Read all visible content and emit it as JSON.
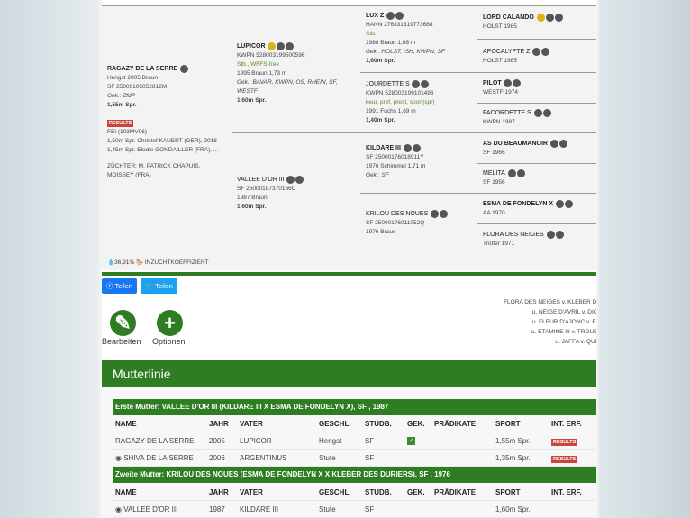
{
  "pedigree": {
    "horse": {
      "name": "RAGAZY DE LA SERRE",
      "l1": "Hengst 2005 Braun",
      "l2": "SF 25000105052812M",
      "gek": "Gek.: ZfdP",
      "sport": "1,55m Spr.",
      "results": "RESULTS",
      "fei": "FEI (103MV06)",
      "r1": "1,50m Spr. Christof KAUERT (GER), 2018",
      "r2": "1,45m Spr. Elodie GONDAILLER (FRA), ...",
      "breeder1": "ZÜCHTER: M. PATRICK CHAPUIS,",
      "breeder2": "MOISSEY (FRA)",
      "inbreeding_value": "36,91%",
      "inbreeding_label": "INZUCHTKOEFFIZIENT"
    },
    "sire": {
      "name": "LUPICOR",
      "l1": "KWPN 528003199500596",
      "l2": "Stb., WFFS-free",
      "l3": "1995 Braun 1,73 m",
      "gek": "Gek.: BAVAR, KWPN, OS, RHEIN, SF, WESTF",
      "sport": "1,60m Spr."
    },
    "dam": {
      "name": "VALLEE D'OR III",
      "l1": "SF 25000187370166C",
      "l2": "1987 Braun",
      "sport": "1,60m Spr."
    },
    "ss": {
      "name": "LUX Z",
      "l1": "HANN 276331319773688",
      "l2": "Stb.",
      "l3": "1988 Braun 1,68 m",
      "gek": "Gek.: HOLST, ISH, KWPN, SF",
      "sport": "1,60m Spr."
    },
    "sd": {
      "name": "JOURDETTE S",
      "l1": "KWPN 528003199101496",
      "l2": "keur, pref, prest, sport(spr)",
      "l3": "1991 Fuchs 1,69 m",
      "sport": "1,40m Spr."
    },
    "ds": {
      "name": "KILDARE III",
      "l1": "SF 25000176018911Y",
      "l2": "1976 Schimmel 1,71 m",
      "gek": "Gek.: SF"
    },
    "dd": {
      "name": "KRILOU DES NOUES",
      "l1": "SF 25000176011052Q",
      "l2": "1976 Braun"
    },
    "gen4": [
      {
        "name": "LORD CALANDO",
        "info": "HOLST 1985"
      },
      {
        "name": "APOCALYPTE Z",
        "info": "HOLST 1985"
      },
      {
        "name": "PILOT",
        "info": "WESTF 1974"
      },
      {
        "name": "FACORDETTE S",
        "info": "KWPN 1987"
      },
      {
        "name": "AS DU BEAUMANOIR",
        "info": "SF 1966"
      },
      {
        "name": "MELITA",
        "info": "SF 1956"
      },
      {
        "name": "ESMA DE FONDELYN X",
        "info": "AA 1970"
      },
      {
        "name": "FLORA DES NEIGES",
        "info": "Trotter 1971"
      }
    ]
  },
  "share": {
    "facebook": "Teilen",
    "twitter": "Teilen"
  },
  "actions": {
    "edit": "Bearbeiten",
    "options": "Optionen"
  },
  "ancestry": [
    "FLORA DES NEIGES v. KLEBER DES DURIERS",
    "u. NEIGE D'AVRIL v. DIC WILLIAM",
    "u. FLEUR D'AJONC v. ESPOIR",
    "u. ETAMINE III v. TROUBADOUR",
    "u. JAFFA v. QUINTIUS"
  ],
  "mutterlinie": {
    "title": "Mutterlinie",
    "columns": [
      "NAME",
      "JAHR",
      "VATER",
      "GESCHL.",
      "STUDB.",
      "GEK.",
      "PRÄDIKATE",
      "SPORT",
      "INT. ERF."
    ],
    "sections": [
      {
        "title": "Erste Mutter: VALLEE D'OR III (KILDARE III X ESMA DE FONDELYN X), SF , 1987",
        "rows": [
          {
            "name": "RAGAZY DE LA SERRE",
            "year": "2005",
            "sire": "LUPICOR",
            "sex": "Hengst",
            "studbook": "SF",
            "gek": true,
            "sport": "1,55m Spr.",
            "int": "RESULTS"
          },
          {
            "name": "SHIVA DE LA SERRE",
            "year": "2006",
            "sire": "ARGENTINUS",
            "sex": "Stute",
            "studbook": "SF",
            "gek": false,
            "sport": "1,35m Spr.",
            "int": "RESULTS"
          }
        ]
      },
      {
        "title": "Zweite Mutter: KRILOU DES NOUES (ESMA DE FONDELYN X X KLEBER DES DURIERS), SF , 1976",
        "rows": [
          {
            "name": "VALLEE D'OR III",
            "year": "1987",
            "sire": "KILDARE III",
            "sex": "Stute",
            "studbook": "SF",
            "gek": false,
            "sport": "1,60m Spr.",
            "int": ""
          }
        ]
      }
    ]
  },
  "colors": {
    "green": "#2e7d22",
    "facebook": "#1877f2",
    "twitter": "#1da1f2",
    "results": "#c9463d"
  }
}
